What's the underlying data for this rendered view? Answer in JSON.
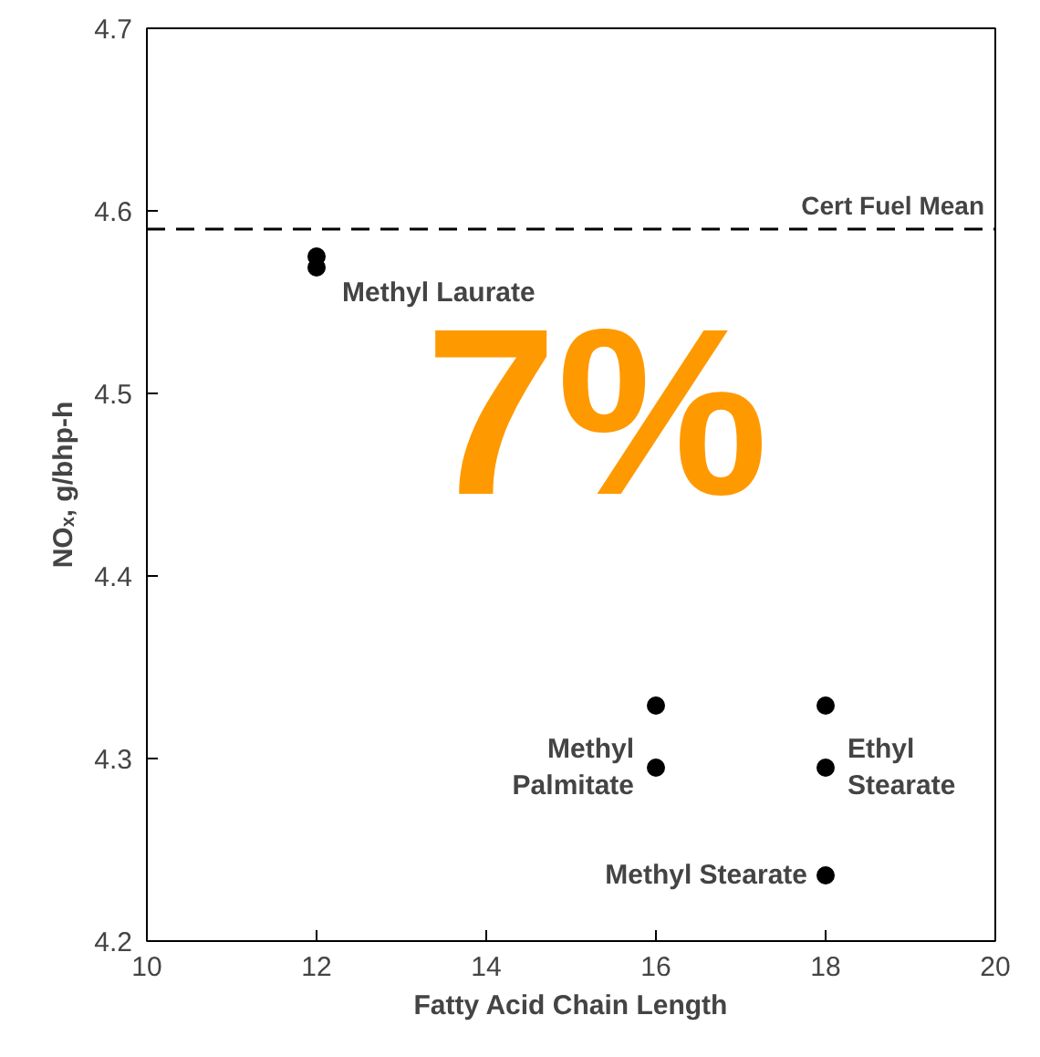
{
  "chart_data": {
    "type": "scatter",
    "xlabel": "Fatty Acid Chain Length",
    "ylabel": "NOₓ, g/bhp-h",
    "x": [
      12,
      12,
      16,
      16,
      18,
      18,
      18
    ],
    "values": [
      4.575,
      4.569,
      4.329,
      4.295,
      4.329,
      4.295,
      4.236
    ],
    "color": "#000000",
    "marker": "circle",
    "grid": false,
    "xlim": [
      10,
      20
    ],
    "xticks": [
      10,
      12,
      14,
      16,
      18,
      20
    ],
    "ylim": [
      4.2,
      4.7
    ],
    "yticks": [
      4.2,
      4.3,
      4.4,
      4.5,
      4.6,
      4.7
    ],
    "ref_lines": [
      {
        "axis": "y",
        "value": 4.59,
        "label": "Cert Fuel Mean",
        "color": "#000000",
        "line_style": "dashed"
      }
    ],
    "annotations": [
      {
        "text": "Methyl Laurate",
        "x": 12,
        "y": 4.569
      },
      {
        "text": "Methyl\nPalmitate",
        "x": 16,
        "y": 4.295
      },
      {
        "text": "Ethyl\nStearate",
        "x": 18,
        "y": 4.295
      },
      {
        "text": "Methyl Stearate",
        "x": 18,
        "y": 4.236
      },
      "7%"
    ]
  }
}
